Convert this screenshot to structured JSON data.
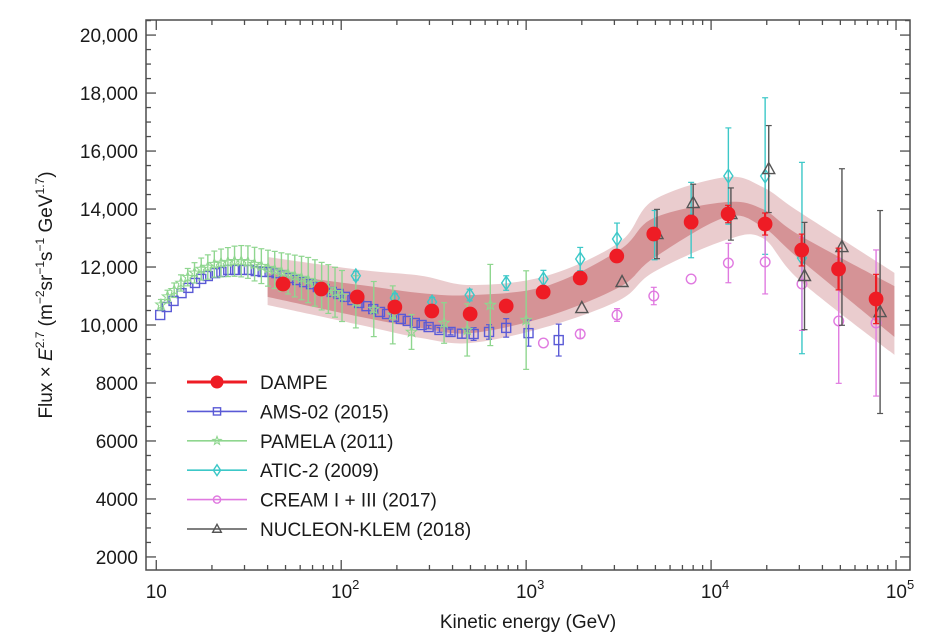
{
  "chart_data": {
    "type": "scatter",
    "title": "",
    "xlabel": "Kinetic energy (GeV)",
    "ylabel": {
      "prefix": "Flux × ",
      "var": "E",
      "var_sup": "2.7",
      "unit_open": " (m",
      "unit_sup1": "−2",
      "unit_mid1": "sr",
      "unit_sup2": "−1",
      "unit_mid2": "s",
      "unit_sup3": "−1",
      "unit_mid3": " GeV",
      "unit_sup4": "1.7",
      "unit_close": ")"
    },
    "xscale": "log",
    "xlim": [
      8.8,
      119000
    ],
    "ylim": [
      1550,
      20520
    ],
    "x_ticks": [
      {
        "value": 10,
        "base": "10",
        "exp": ""
      },
      {
        "value": 100,
        "base": "10",
        "exp": "2"
      },
      {
        "value": 1000,
        "base": "10",
        "exp": "3"
      },
      {
        "value": 10000,
        "base": "10",
        "exp": "4"
      },
      {
        "value": 100000,
        "base": "10",
        "exp": "5"
      }
    ],
    "y_ticks": [
      {
        "value": 2000,
        "label": "2000"
      },
      {
        "value": 4000,
        "label": "4000"
      },
      {
        "value": 6000,
        "label": "6000"
      },
      {
        "value": 8000,
        "label": "8000"
      },
      {
        "value": 10000,
        "label": "10,000"
      },
      {
        "value": 12000,
        "label": "12,000"
      },
      {
        "value": 14000,
        "label": "14,000"
      },
      {
        "value": 16000,
        "label": "16,000"
      },
      {
        "value": 18000,
        "label": "18,000"
      },
      {
        "value": 20000,
        "label": "20,000"
      }
    ],
    "grid": false,
    "legend_position": "bottom-left",
    "bands": [
      {
        "name": "DAMPE total uncertainty",
        "color": "#d9a3a6",
        "points": [
          {
            "x": 40,
            "lo": 10690,
            "hi": 12345
          },
          {
            "x": 127,
            "lo": 10000,
            "hi": 11900
          },
          {
            "x": 270,
            "lo": 9550,
            "hi": 11700
          },
          {
            "x": 500,
            "lo": 9380,
            "hi": 11380
          },
          {
            "x": 1280,
            "lo": 9930,
            "hi": 11690
          },
          {
            "x": 3200,
            "lo": 10860,
            "hi": 12860
          },
          {
            "x": 4900,
            "lo": 11830,
            "hi": 14310
          },
          {
            "x": 12000,
            "lo": 12930,
            "hi": 15100
          },
          {
            "x": 19000,
            "lo": 13000,
            "hi": 14760
          },
          {
            "x": 30000,
            "lo": 11550,
            "hi": 13900
          },
          {
            "x": 98000,
            "lo": 8970,
            "hi": 11800
          }
        ]
      },
      {
        "name": "DAMPE statistical uncertainty",
        "color": "#cc7b7f",
        "points": [
          {
            "x": 40,
            "lo": 10970,
            "hi": 11790
          },
          {
            "x": 127,
            "lo": 10280,
            "hi": 11380
          },
          {
            "x": 270,
            "lo": 9900,
            "hi": 11100
          },
          {
            "x": 500,
            "lo": 9720,
            "hi": 11030
          },
          {
            "x": 1280,
            "lo": 10280,
            "hi": 11340
          },
          {
            "x": 3200,
            "lo": 11310,
            "hi": 12590
          },
          {
            "x": 4900,
            "lo": 12310,
            "hi": 13690
          },
          {
            "x": 12000,
            "lo": 13720,
            "hi": 14240
          },
          {
            "x": 19000,
            "lo": 13380,
            "hi": 14000
          },
          {
            "x": 30000,
            "lo": 12280,
            "hi": 13100
          },
          {
            "x": 98000,
            "lo": 9590,
            "hi": 11340
          }
        ]
      }
    ],
    "series": [
      {
        "name": "AMS-02 (2015)",
        "legend": "AMS-02 (2015)",
        "marker": "square",
        "color": "#5a5ad6",
        "filled": false,
        "points": [
          {
            "x": 10.5,
            "y": 10345,
            "err": 0
          },
          {
            "x": 11.4,
            "y": 10620,
            "err": 0
          },
          {
            "x": 12.4,
            "y": 10830,
            "err": 0
          },
          {
            "x": 13.7,
            "y": 11100,
            "err": 0
          },
          {
            "x": 14.9,
            "y": 11280,
            "err": 0
          },
          {
            "x": 16.2,
            "y": 11450,
            "err": 0
          },
          {
            "x": 17.5,
            "y": 11590,
            "err": 0
          },
          {
            "x": 19.0,
            "y": 11690,
            "err": 0
          },
          {
            "x": 20.8,
            "y": 11790,
            "err": 0
          },
          {
            "x": 22.5,
            "y": 11830,
            "err": 0
          },
          {
            "x": 24.5,
            "y": 11900,
            "err": 0
          },
          {
            "x": 26.7,
            "y": 11900,
            "err": 0
          },
          {
            "x": 29.4,
            "y": 11900,
            "err": 0
          },
          {
            "x": 31.7,
            "y": 11900,
            "err": 0
          },
          {
            "x": 34.5,
            "y": 11860,
            "err": 0
          },
          {
            "x": 37.6,
            "y": 11830,
            "err": 0
          },
          {
            "x": 41.0,
            "y": 11830,
            "err": 0
          },
          {
            "x": 44.7,
            "y": 11790,
            "err": 0
          },
          {
            "x": 48.8,
            "y": 11720,
            "err": 0
          },
          {
            "x": 53.0,
            "y": 11620,
            "err": 0
          },
          {
            "x": 57.8,
            "y": 11550,
            "err": 0
          },
          {
            "x": 63.0,
            "y": 11480,
            "err": 0
          },
          {
            "x": 68.7,
            "y": 11410,
            "err": 0
          },
          {
            "x": 74.8,
            "y": 11310,
            "err": 0
          },
          {
            "x": 81.5,
            "y": 11240,
            "err": 0
          },
          {
            "x": 88.9,
            "y": 11140,
            "err": 0
          },
          {
            "x": 96.8,
            "y": 11070,
            "err": 0
          },
          {
            "x": 105,
            "y": 10970,
            "err": 0
          },
          {
            "x": 115,
            "y": 10860,
            "err": 0
          },
          {
            "x": 125,
            "y": 10760,
            "err": 0
          },
          {
            "x": 137,
            "y": 10650,
            "err": 0
          },
          {
            "x": 149,
            "y": 10550,
            "err": 0
          },
          {
            "x": 162,
            "y": 10450,
            "err": 0
          },
          {
            "x": 177,
            "y": 10380,
            "err": 0
          },
          {
            "x": 193,
            "y": 10280,
            "err": 0
          },
          {
            "x": 210,
            "y": 10210,
            "err": 0
          },
          {
            "x": 229,
            "y": 10140,
            "err": 0
          },
          {
            "x": 250,
            "y": 10070,
            "err": 0
          },
          {
            "x": 272,
            "y": 10000,
            "err": 0
          },
          {
            "x": 297,
            "y": 9930,
            "err": 60
          },
          {
            "x": 340,
            "y": 9830,
            "err": 80
          },
          {
            "x": 390,
            "y": 9760,
            "err": 100
          },
          {
            "x": 450,
            "y": 9700,
            "err": 150
          },
          {
            "x": 520,
            "y": 9690,
            "err": 220
          },
          {
            "x": 630,
            "y": 9760,
            "err": 250
          },
          {
            "x": 780,
            "y": 9900,
            "err": 320
          },
          {
            "x": 1030,
            "y": 9720,
            "err": 450
          },
          {
            "x": 1500,
            "y": 9480,
            "err": 550
          }
        ]
      },
      {
        "name": "PAMELA (2011)",
        "legend": "PAMELA (2011)",
        "marker": "star",
        "color": "#8fd68f",
        "filled": false,
        "points": [
          {
            "x": 10.6,
            "y": 10700,
            "err": 180
          },
          {
            "x": 11.5,
            "y": 10980,
            "err": 220
          },
          {
            "x": 12.5,
            "y": 11200,
            "err": 250
          },
          {
            "x": 13.6,
            "y": 11450,
            "err": 280
          },
          {
            "x": 14.8,
            "y": 11650,
            "err": 300
          },
          {
            "x": 16.1,
            "y": 11800,
            "err": 350
          },
          {
            "x": 17.5,
            "y": 11930,
            "err": 380
          },
          {
            "x": 19.0,
            "y": 12000,
            "err": 420
          },
          {
            "x": 20.6,
            "y": 12100,
            "err": 450
          },
          {
            "x": 22.4,
            "y": 12140,
            "err": 480
          },
          {
            "x": 24.4,
            "y": 12170,
            "err": 500
          },
          {
            "x": 26.5,
            "y": 12200,
            "err": 520
          },
          {
            "x": 28.8,
            "y": 12200,
            "err": 540
          },
          {
            "x": 31.3,
            "y": 12170,
            "err": 560
          },
          {
            "x": 34.0,
            "y": 12100,
            "err": 580
          },
          {
            "x": 37.0,
            "y": 12030,
            "err": 600
          },
          {
            "x": 40.2,
            "y": 11960,
            "err": 620
          },
          {
            "x": 43.7,
            "y": 11900,
            "err": 640
          },
          {
            "x": 47.5,
            "y": 11830,
            "err": 660
          },
          {
            "x": 51.6,
            "y": 11760,
            "err": 690
          },
          {
            "x": 56.1,
            "y": 11690,
            "err": 720
          },
          {
            "x": 61.0,
            "y": 11620,
            "err": 750
          },
          {
            "x": 66.3,
            "y": 11550,
            "err": 780
          },
          {
            "x": 72.1,
            "y": 11450,
            "err": 800
          },
          {
            "x": 78.4,
            "y": 11340,
            "err": 820
          },
          {
            "x": 85.2,
            "y": 11240,
            "err": 840
          },
          {
            "x": 92.6,
            "y": 11130,
            "err": 860
          },
          {
            "x": 101,
            "y": 11000,
            "err": 880
          },
          {
            "x": 120,
            "y": 10800,
            "err": 900
          },
          {
            "x": 150,
            "y": 10550,
            "err": 950
          },
          {
            "x": 190,
            "y": 10350,
            "err": 1000
          },
          {
            "x": 240,
            "y": 9760,
            "err": 600
          },
          {
            "x": 360,
            "y": 10070,
            "err": 700
          },
          {
            "x": 480,
            "y": 9830,
            "err": 900
          },
          {
            "x": 640,
            "y": 10690,
            "err": 1400
          },
          {
            "x": 1000,
            "y": 10170,
            "err": 1700
          }
        ]
      },
      {
        "name": "ATIC-2 (2009)",
        "legend": "ATIC-2 (2009)",
        "marker": "diamond",
        "color": "#3cc8c8",
        "filled": false,
        "points": [
          {
            "x": 120,
            "y": 11700,
            "err": 150
          },
          {
            "x": 195,
            "y": 10930,
            "err": 150
          },
          {
            "x": 310,
            "y": 10793,
            "err": 160
          },
          {
            "x": 495,
            "y": 11034,
            "err": 200
          },
          {
            "x": 780,
            "y": 11448,
            "err": 250
          },
          {
            "x": 1240,
            "y": 11586,
            "err": 300
          },
          {
            "x": 1960,
            "y": 12276,
            "err": 400
          },
          {
            "x": 3100,
            "y": 12966,
            "err": 550
          },
          {
            "x": 4950,
            "y": 13100,
            "err": 850
          },
          {
            "x": 7800,
            "y": 13620,
            "err": 1300
          },
          {
            "x": 12400,
            "y": 15138,
            "err": 1660
          },
          {
            "x": 19600,
            "y": 15138,
            "err": 2700
          },
          {
            "x": 31000,
            "y": 12310,
            "err": 3300
          }
        ]
      },
      {
        "name": "CREAM I + III (2017)",
        "legend": "CREAM I + III (2017)",
        "marker": "circle",
        "color": "#e07ae0",
        "filled": false,
        "points": [
          {
            "x": 1240,
            "y": 9379,
            "err": 0
          },
          {
            "x": 1960,
            "y": 9690,
            "err": 150
          },
          {
            "x": 3100,
            "y": 10345,
            "err": 220
          },
          {
            "x": 4900,
            "y": 11000,
            "err": 300
          },
          {
            "x": 7800,
            "y": 11586,
            "err": 0
          },
          {
            "x": 12400,
            "y": 12138,
            "err": 680
          },
          {
            "x": 19600,
            "y": 12172,
            "err": 1100
          },
          {
            "x": 31000,
            "y": 11414,
            "err": 1600
          },
          {
            "x": 49000,
            "y": 10138,
            "err": 2150
          },
          {
            "x": 78000,
            "y": 10069,
            "err": 2520
          }
        ]
      },
      {
        "name": "NUCLEON-KLEM (2018)",
        "legend": "NUCLEON-KLEM (2018)",
        "marker": "triangle",
        "color": "#555555",
        "filled": false,
        "points": [
          {
            "x": 2000,
            "y": 10586,
            "err": 0
          },
          {
            "x": 3300,
            "y": 11483,
            "err": 0
          },
          {
            "x": 5100,
            "y": 13138,
            "err": 850
          },
          {
            "x": 8000,
            "y": 14207,
            "err": 650
          },
          {
            "x": 12800,
            "y": 13828,
            "err": 900
          },
          {
            "x": 20500,
            "y": 15379,
            "err": 1500
          },
          {
            "x": 32000,
            "y": 11690,
            "err": 1850
          },
          {
            "x": 51000,
            "y": 12690,
            "err": 2700
          },
          {
            "x": 82000,
            "y": 10448,
            "err": 3500
          }
        ]
      },
      {
        "name": "DAMPE",
        "legend": "DAMPE",
        "marker": "filled-circle",
        "color": "#ee1c25",
        "filled": true,
        "points": [
          {
            "x": 48.5,
            "y": 11414,
            "err": 60
          },
          {
            "x": 78,
            "y": 11241,
            "err": 60
          },
          {
            "x": 122,
            "y": 10966,
            "err": 60
          },
          {
            "x": 195,
            "y": 10621,
            "err": 60
          },
          {
            "x": 309,
            "y": 10483,
            "err": 60
          },
          {
            "x": 498,
            "y": 10379,
            "err": 70
          },
          {
            "x": 780,
            "y": 10655,
            "err": 80
          },
          {
            "x": 1236,
            "y": 11138,
            "err": 90
          },
          {
            "x": 1960,
            "y": 11621,
            "err": 110
          },
          {
            "x": 3090,
            "y": 12379,
            "err": 130
          },
          {
            "x": 4900,
            "y": 13138,
            "err": 180
          },
          {
            "x": 7800,
            "y": 13552,
            "err": 230
          },
          {
            "x": 12360,
            "y": 13828,
            "err": 300
          },
          {
            "x": 19590,
            "y": 13483,
            "err": 380
          },
          {
            "x": 30900,
            "y": 12586,
            "err": 550
          },
          {
            "x": 48900,
            "y": 11931,
            "err": 720
          },
          {
            "x": 78000,
            "y": 10897,
            "err": 850
          }
        ]
      }
    ],
    "legend_order": [
      "DAMPE",
      "AMS-02 (2015)",
      "PAMELA (2011)",
      "ATIC-2 (2009)",
      "CREAM I + III (2017)",
      "NUCLEON-KLEM (2018)"
    ]
  }
}
